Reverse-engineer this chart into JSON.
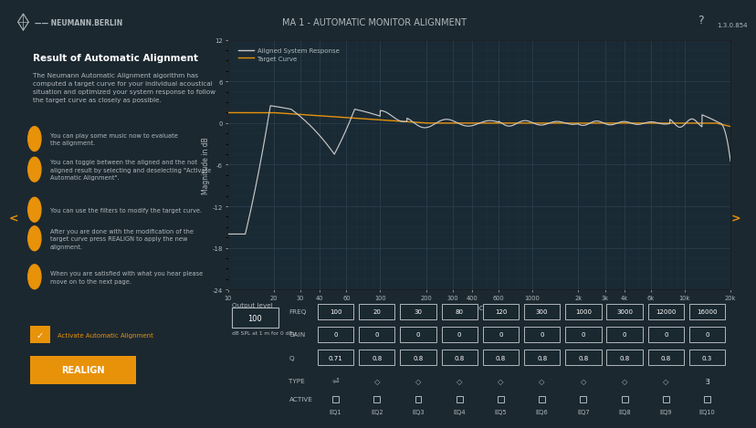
{
  "bg_dark": "#1c2830",
  "bg_panel": "#2a3540",
  "bg_header": "#0d1419",
  "bg_plot": "#1a2a34",
  "orange": "#e8920a",
  "white": "#ffffff",
  "light_gray": "#b0b8bc",
  "grid_color": "#2e4050",
  "title_text": "MA 1 - AUTOMATIC MONITOR ALIGNMENT",
  "version_text": "1.3.0.854",
  "brand_text": "NEUMANN.BERLIN",
  "result_title": "Result of Automatic Alignment",
  "result_body": "The Neumann Automatic Alignment algorithm has\ncomputed a target curve for your individual acoustical\nsituation and optimized your system response to follow\nthe target curve as closely as possible.",
  "bullet_items": [
    "You can play some music now to evaluate\nthe alignment.",
    "You can toggle between the aligned and the not\naligned result by selecting and deselecting \"Activate\nAutomatic Alignment\".",
    "You can use the filters to modify the target curve.",
    "After you are done with the modification of the\ntarget curve press REALIGN to apply the new\nalignment.",
    "When you are satisfied with what you hear please\nmove on to the next page."
  ],
  "eq_labels": [
    "EQ1",
    "EQ2",
    "EQ3",
    "EQ4",
    "EQ5",
    "EQ6",
    "EQ7",
    "EQ8",
    "EQ9",
    "EQ10"
  ],
  "eq_freq": [
    "100",
    "20",
    "30",
    "80",
    "120",
    "300",
    "1000",
    "3000",
    "12000",
    "16000"
  ],
  "eq_gain": [
    "0",
    "0",
    "0",
    "0",
    "0",
    "0",
    "0",
    "0",
    "0",
    "0"
  ],
  "eq_q": [
    "0.71",
    "0.8",
    "0.8",
    "0.8",
    "0.8",
    "0.8",
    "0.8",
    "0.8",
    "0.8",
    "0.3"
  ],
  "output_level": "100",
  "legend_aligned": "Aligned System Response",
  "legend_target": "Target Curve",
  "ylabel": "Magnitude in dB",
  "xlabel": "Frequency in Hz",
  "ylim": [
    -24,
    12
  ],
  "yticks": [
    -24,
    -18,
    -12,
    -6,
    0,
    6,
    12
  ],
  "x_major": [
    10,
    20,
    30,
    40,
    60,
    100,
    200,
    300,
    400,
    600,
    1000,
    2000,
    3000,
    4000,
    6000,
    10000,
    20000
  ],
  "x_labels": [
    "10",
    "20",
    "30",
    "40",
    "60",
    "100",
    "200",
    "300",
    "400",
    "600",
    "1000",
    "2k",
    "3k",
    "4k",
    "6k",
    "10k",
    "20k"
  ]
}
